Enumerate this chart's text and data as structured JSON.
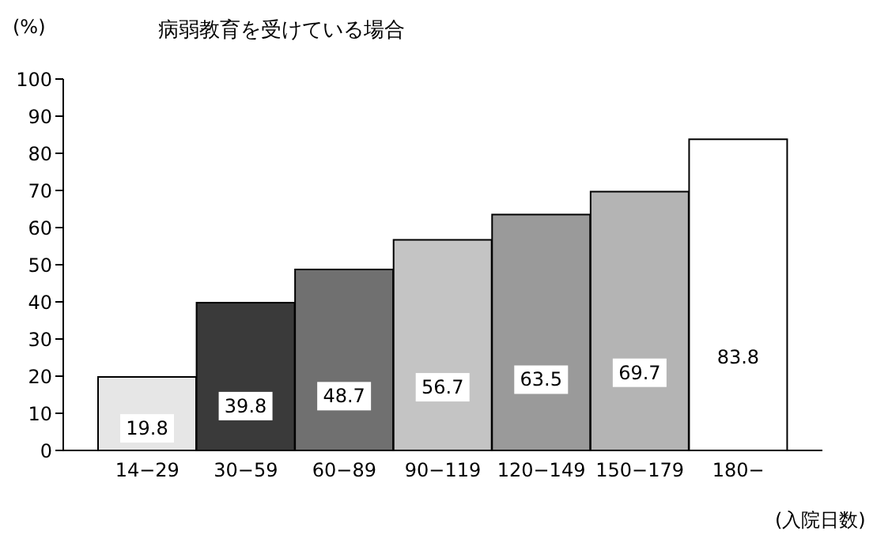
{
  "chart_data": {
    "type": "bar",
    "title": "病弱教育を受けている場合",
    "ylabel": "(%)",
    "xlabel": "(入院日数)",
    "categories": [
      "14−29",
      "30−59",
      "60−89",
      "90−119",
      "120−149",
      "150−179",
      "180−"
    ],
    "values": [
      19.8,
      39.8,
      48.7,
      56.7,
      63.5,
      69.7,
      83.8
    ],
    "colors": [
      "#e6e6e6",
      "#3a3a3a",
      "#707070",
      "#c4c4c4",
      "#9a9a9a",
      "#b4b4b4",
      "#ffffff"
    ],
    "ylim": [
      0,
      100
    ],
    "yticks": [
      0,
      10,
      20,
      30,
      40,
      50,
      60,
      70,
      80,
      90,
      100
    ],
    "grid": false,
    "legend": false,
    "data_labels": true
  }
}
